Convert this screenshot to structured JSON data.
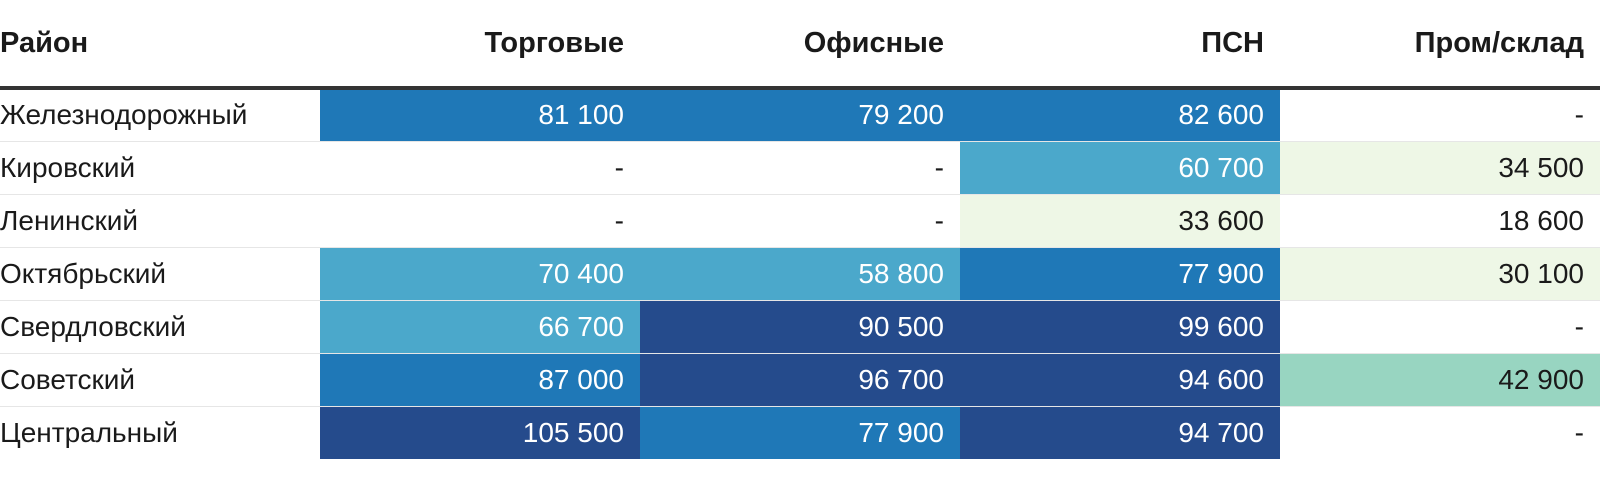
{
  "chart_data": {
    "type": "table",
    "columns": [
      "Район",
      "Торговые",
      "Офисные",
      "ПСН",
      "Пром/склад"
    ],
    "rows": [
      {
        "name": "Железнодорожный",
        "values": [
          "81 100",
          "79 200",
          "82 600",
          "-"
        ]
      },
      {
        "name": "Кировский",
        "values": [
          "-",
          "-",
          "60 700",
          "34 500"
        ]
      },
      {
        "name": "Ленинский",
        "values": [
          "-",
          "-",
          "33 600",
          "18 600"
        ]
      },
      {
        "name": "Октябрьский",
        "values": [
          "70 400",
          "58 800",
          "77 900",
          "30 100"
        ]
      },
      {
        "name": "Свердловский",
        "values": [
          "66 700",
          "90 500",
          "99 600",
          "-"
        ]
      },
      {
        "name": "Советский",
        "values": [
          "87 000",
          "96 700",
          "94 600",
          "42 900"
        ]
      },
      {
        "name": "Центральный",
        "values": [
          "105 500",
          "77 900",
          "94 700",
          "-"
        ]
      }
    ],
    "color_scale": [
      {
        "min": 0,
        "max": 30000,
        "color": "#ffffff"
      },
      {
        "min": 30000,
        "max": 40000,
        "color": "#eef7e6"
      },
      {
        "min": 40000,
        "max": 50000,
        "color": "#98d5c1"
      },
      {
        "min": 50000,
        "max": 75000,
        "color": "#4ba8cb"
      },
      {
        "min": 75000,
        "max": 90000,
        "color": "#1f78b7"
      },
      {
        "min": 90000,
        "max": 1000000,
        "color": "#254b8c"
      }
    ],
    "dark_text_color": "#1a1a1a",
    "light_text_color": "#ffffff"
  }
}
